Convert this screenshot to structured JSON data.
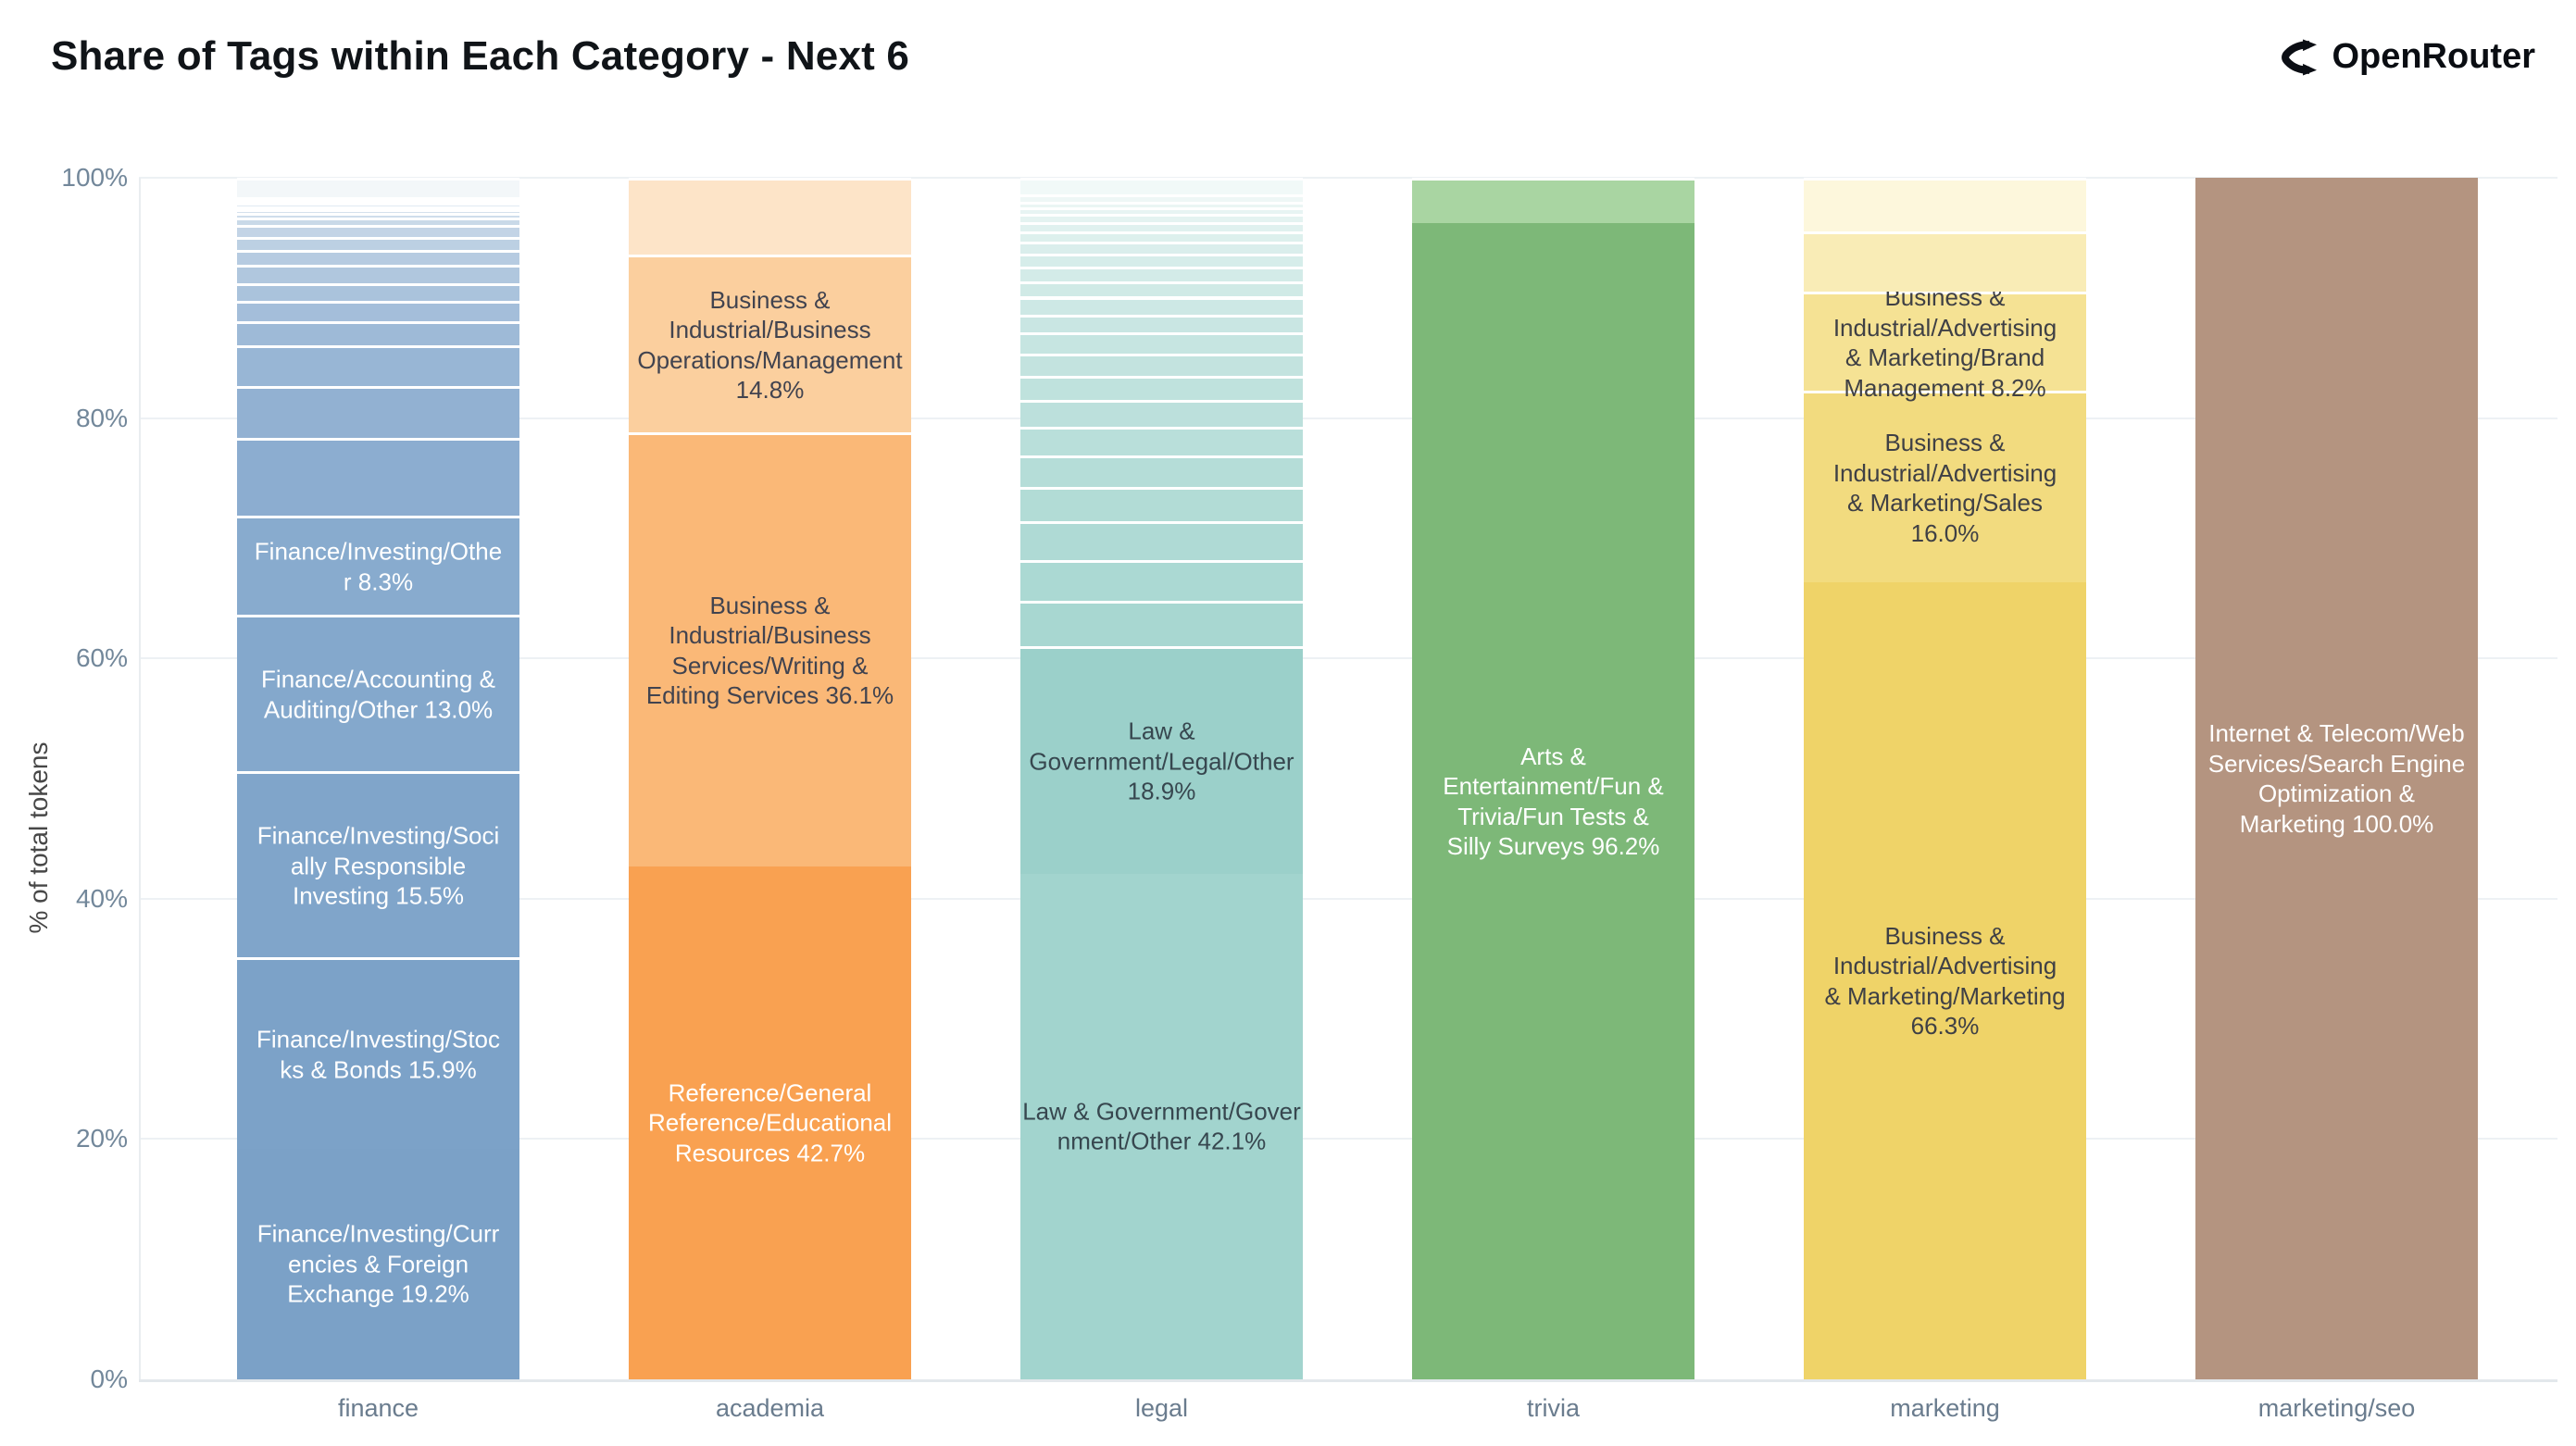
{
  "header": {
    "title": "Share of Tags within Each Category - Next 6",
    "brand": {
      "name": "OpenRouter"
    }
  },
  "chart_data": {
    "type": "bar",
    "stacked": true,
    "title": "Share of Tags within Each Category - Next 6",
    "xlabel": "",
    "ylabel": "% of total tokens",
    "ylim": [
      0,
      100
    ],
    "grid": "horizontal",
    "legend": "none",
    "yticks": [
      {
        "value": 0,
        "label": "0%"
      },
      {
        "value": 20,
        "label": "20%"
      },
      {
        "value": 40,
        "label": "40%"
      },
      {
        "value": 60,
        "label": "60%"
      },
      {
        "value": 80,
        "label": "80%"
      },
      {
        "value": 100,
        "label": "100%"
      }
    ],
    "categories": [
      "finance",
      "academia",
      "legal",
      "trivia",
      "marketing",
      "marketing/seo"
    ],
    "bars": [
      {
        "category": "finance",
        "segments": [
          {
            "label": "Finance/Investing/Curr\nencies & Foreign\nExchange 19.2%",
            "value": 19.2,
            "color": "#7ba1c7",
            "text_color": "#ffffff"
          },
          {
            "label": "Finance/Investing/Stoc\nks & Bonds 15.9%",
            "value": 15.9,
            "color": "#7ca2c8",
            "text_color": "#ffffff"
          },
          {
            "label": "Finance/Investing/Soci\nally Responsible\nInvesting 15.5%",
            "value": 15.5,
            "color": "#80a5ca",
            "text_color": "#ffffff"
          },
          {
            "label": "Finance/Accounting &\nAuditing/Other 13.0%",
            "value": 13.0,
            "color": "#84a8cc",
            "text_color": "#ffffff"
          },
          {
            "label": "Finance/Investing/Othe\nr 8.3%",
            "value": 8.3,
            "color": "#88abce",
            "text_color": "#ffffff"
          },
          {
            "fade": {
              "from": "#8cadd0",
              "to": "#f3f7f9",
              "values": [
                6.45,
                4.3,
                3.4,
                2.0,
                1.7,
                1.5,
                1.5,
                1.25,
                1.05,
                1.0,
                0.6,
                0.4,
                0.3,
                0.25,
                0.3,
                0.25,
                0.25,
                1.6
              ]
            }
          }
        ]
      },
      {
        "category": "academia",
        "segments": [
          {
            "label": "Reference/General\nReference/Educational\nResources 42.7%",
            "value": 42.7,
            "color": "#f9a151",
            "text_color": "#ffffff"
          },
          {
            "label": "Business &\nIndustrial/Business\nServices/Writing &\nEditing Services 36.1%",
            "value": 36.1,
            "color": "#fab877",
            "text_color": "#41434f"
          },
          {
            "label": "Business &\nIndustrial/Business\nOperations/Management\n14.8%",
            "value": 14.8,
            "color": "#fbcf9e",
            "text_color": "#41434f"
          },
          {
            "label": "",
            "value": 6.4,
            "color": "#fde4c8",
            "text_color": "#41434f"
          }
        ]
      },
      {
        "category": "legal",
        "segments": [
          {
            "label": "Law & Government/Gover\nnment/Other 42.1%",
            "value": 42.1,
            "color": "#a2d4ce",
            "text_color": "#37474f"
          },
          {
            "label": "Law &\nGovernment/Legal/Other\n18.9%",
            "value": 18.9,
            "color": "#9bd0ca",
            "text_color": "#37474f"
          },
          {
            "fade": {
              "from": "#a8d7d1",
              "to": "#f1f9f8",
              "values": [
                3.8,
                3.4,
                3.2,
                2.9,
                2.6,
                2.4,
                2.2,
                2.0,
                1.9,
                1.7,
                1.5,
                1.5,
                1.3,
                1.2,
                1.1,
                1.0,
                0.8,
                0.8,
                0.7,
                0.5,
                0.5,
                0.6,
                1.4
              ]
            }
          }
        ]
      },
      {
        "category": "trivia",
        "segments": [
          {
            "label": "Arts &\nEntertainment/Fun &\nTrivia/Fun Tests &\nSilly Surveys 96.2%",
            "value": 96.2,
            "color": "#7db878",
            "text_color": "#ffffff"
          },
          {
            "label": "",
            "value": 3.8,
            "color": "#a9d5a2",
            "text_color": "#37474f"
          }
        ]
      },
      {
        "category": "marketing",
        "segments": [
          {
            "label": "Business &\nIndustrial/Advertising\n& Marketing/Marketing\n66.3%",
            "value": 66.3,
            "color": "#efd368",
            "text_color": "#3f4045"
          },
          {
            "label": "Business &\nIndustrial/Advertising\n& Marketing/Sales\n16.0%",
            "value": 16.0,
            "color": "#f2db7f",
            "text_color": "#3f4045"
          },
          {
            "label": "Business &\nIndustrial/Advertising\n& Marketing/Brand\nManagement 8.2%",
            "value": 8.2,
            "color": "#f5e294",
            "text_color": "#3f4045"
          },
          {
            "label": "",
            "value": 5.0,
            "color": "#f9ecb6",
            "text_color": "#3f4045"
          },
          {
            "label": "",
            "value": 4.5,
            "color": "#fdf7dc",
            "text_color": "#3f4045"
          }
        ]
      },
      {
        "category": "marketing/seo",
        "segments": [
          {
            "label": "Internet & Telecom/Web\nServices/Search Engine\nOptimization &\nMarketing 100.0%",
            "value": 100.0,
            "color": "#b49480",
            "text_color": "#ffffff"
          }
        ]
      }
    ]
  }
}
